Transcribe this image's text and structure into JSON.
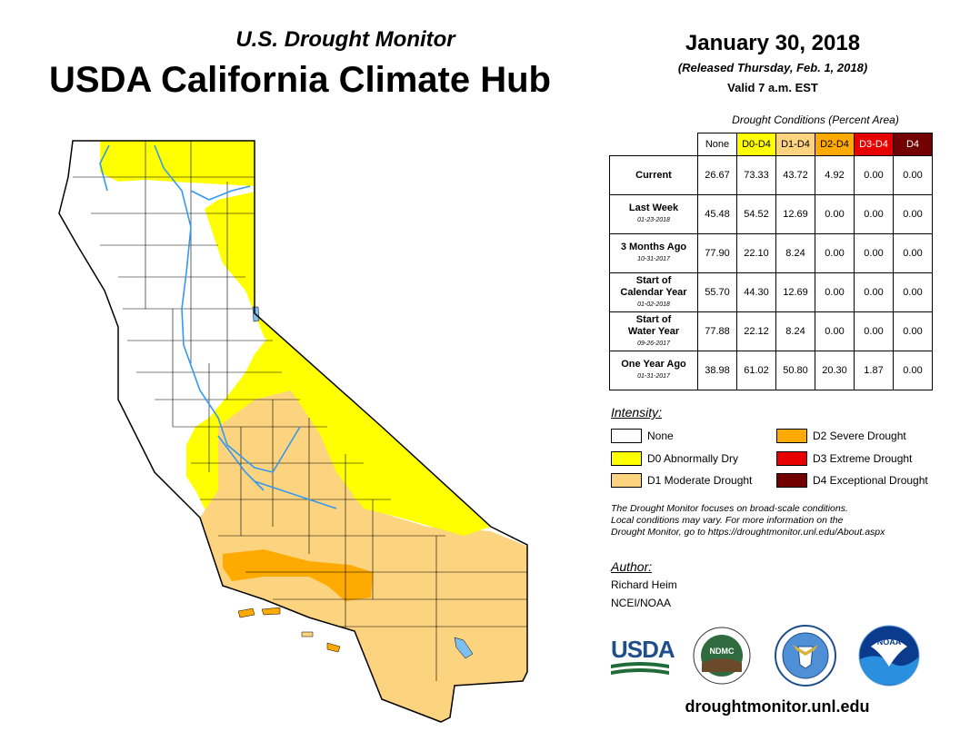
{
  "header": {
    "subtitle": "U.S. Drought Monitor",
    "title": "USDA California Climate Hub",
    "date": "January 30, 2018",
    "released": "(Released Thursday, Feb. 1, 2018)",
    "valid": "Valid 7 a.m. EST"
  },
  "table": {
    "caption": "Drought Conditions (Percent Area)",
    "columns": [
      "None",
      "D0-D4",
      "D1-D4",
      "D2-D4",
      "D3-D4",
      "D4"
    ],
    "rows": [
      {
        "label": "Current",
        "label2": "",
        "date": "",
        "values": [
          "26.67",
          "73.33",
          "43.72",
          "4.92",
          "0.00",
          "0.00"
        ]
      },
      {
        "label": "Last Week",
        "label2": "",
        "date": "01-23-2018",
        "values": [
          "45.48",
          "54.52",
          "12.69",
          "0.00",
          "0.00",
          "0.00"
        ]
      },
      {
        "label": "3 Months Ago",
        "label2": "",
        "date": "10-31-2017",
        "values": [
          "77.90",
          "22.10",
          "8.24",
          "0.00",
          "0.00",
          "0.00"
        ]
      },
      {
        "label": "Start of",
        "label2": "Calendar Year",
        "date": "01-02-2018",
        "values": [
          "55.70",
          "44.30",
          "12.69",
          "0.00",
          "0.00",
          "0.00"
        ]
      },
      {
        "label": "Start of",
        "label2": "Water Year",
        "date": "09-26-2017",
        "values": [
          "77.88",
          "22.12",
          "8.24",
          "0.00",
          "0.00",
          "0.00"
        ]
      },
      {
        "label": "One Year Ago",
        "label2": "",
        "date": "01-31-2017",
        "values": [
          "38.98",
          "61.02",
          "50.80",
          "20.30",
          "1.87",
          "0.00"
        ]
      }
    ]
  },
  "legend": {
    "heading": "Intensity:",
    "items": [
      {
        "label": "None",
        "color": "#ffffff"
      },
      {
        "label": "D0 Abnormally Dry",
        "color": "#ffff00"
      },
      {
        "label": "D1 Moderate Drought",
        "color": "#fcd37f"
      },
      {
        "label": "D2 Severe Drought",
        "color": "#ffaa00"
      },
      {
        "label": "D3 Extreme Drought",
        "color": "#e60000"
      },
      {
        "label": "D4 Exceptional Drought",
        "color": "#730000"
      }
    ]
  },
  "disclaimer": {
    "line1": "The Drought Monitor focuses on broad-scale conditions.",
    "line2": "Local conditions may vary. For more information on the",
    "line3": "Drought Monitor, go to https://droughtmonitor.unl.edu/About.aspx"
  },
  "author": {
    "heading": "Author:",
    "name": "Richard Heim",
    "org": "NCEI/NOAA"
  },
  "logos": {
    "usda": "USDA",
    "ndmc": "NDMC",
    "noaa": "NOAA"
  },
  "website": "droughtmonitor.unl.edu",
  "map": {
    "colors": {
      "none": "#ffffff",
      "d0": "#ffff00",
      "d1": "#fcd37f",
      "d2": "#ffaa00",
      "water": "#7fbfef",
      "river": "#3399ee",
      "border": "#000000"
    }
  }
}
